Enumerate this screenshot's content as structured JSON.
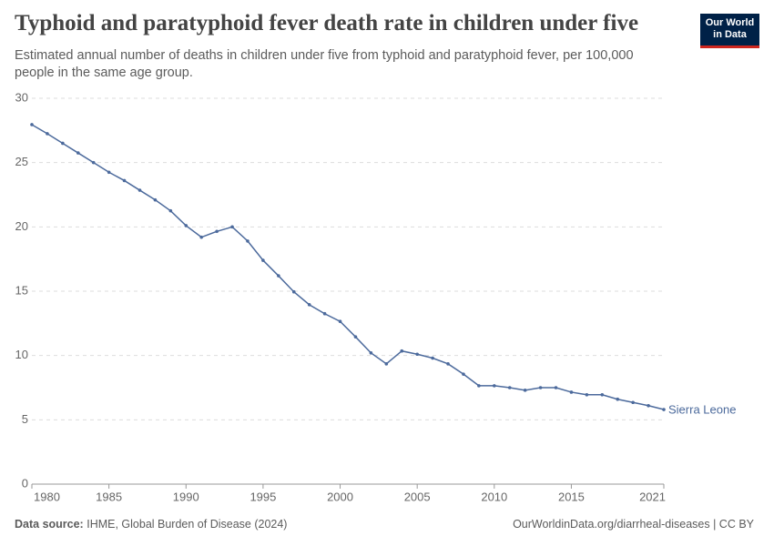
{
  "chart_data": {
    "type": "line",
    "title": "Typhoid and paratyphoid fever death rate in children under five",
    "subtitle": "Estimated annual number of deaths in children under five from typhoid and paratyphoid fever, per 100,000 people in the same age group.",
    "logo": [
      "Our World",
      "in Data"
    ],
    "source_label": "Data source:",
    "source": "IHME, Global Burden of Disease (2024)",
    "credit": "OurWorldinData.org/diarrheal-diseases | CC BY",
    "x": [
      1980,
      1981,
      1982,
      1983,
      1984,
      1985,
      1986,
      1987,
      1988,
      1989,
      1990,
      1991,
      1992,
      1993,
      1994,
      1995,
      1996,
      1997,
      1998,
      1999,
      2000,
      2001,
      2002,
      2003,
      2004,
      2005,
      2006,
      2007,
      2008,
      2009,
      2010,
      2011,
      2012,
      2013,
      2014,
      2015,
      2016,
      2017,
      2018,
      2019,
      2020,
      2021
    ],
    "series": [
      {
        "name": "Sierra Leone",
        "color": "#4c6a9c",
        "values": [
          27.95,
          27.25,
          26.5,
          25.75,
          25.0,
          24.25,
          23.6,
          22.85,
          22.1,
          21.25,
          20.1,
          19.2,
          19.65,
          20.0,
          18.9,
          17.4,
          16.2,
          14.95,
          13.95,
          13.25,
          12.65,
          11.45,
          10.2,
          9.35,
          10.35,
          10.1,
          9.8,
          9.35,
          8.55,
          7.65,
          7.65,
          7.5,
          7.3,
          7.5,
          7.5,
          7.15,
          6.95,
          6.95,
          6.6,
          6.35,
          6.1,
          5.8
        ]
      }
    ],
    "xlim": [
      1980,
      2021
    ],
    "xticks": [
      1980,
      1985,
      1990,
      1995,
      2000,
      2005,
      2010,
      2015,
      2021
    ],
    "ylim": [
      0,
      30
    ],
    "yticks": [
      0,
      5,
      10,
      15,
      20,
      25,
      30
    ],
    "grid": true
  }
}
